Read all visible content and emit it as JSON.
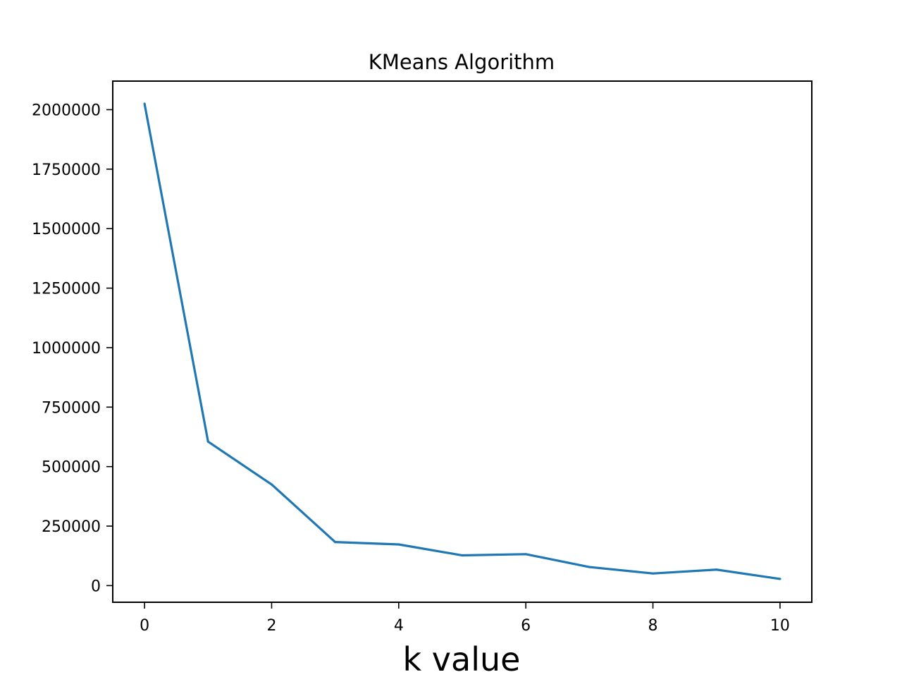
{
  "chart_data": {
    "type": "line",
    "title": "KMeans Algorithm",
    "xlabel": "k value",
    "ylabel": "",
    "x": [
      0,
      1,
      2,
      3,
      4,
      5,
      6,
      7,
      8,
      9,
      10
    ],
    "series": [
      {
        "values": [
          2025000,
          605000,
          425000,
          183000,
          173000,
          127000,
          132000,
          78000,
          51000,
          67000,
          28000
        ],
        "color": "#1f77b4"
      }
    ],
    "xlim": [
      -0.5,
      10.5
    ],
    "ylim": [
      -70000,
      2120000
    ],
    "xticks": [
      0,
      2,
      4,
      6,
      8,
      10
    ],
    "yticks": [
      0,
      250000,
      500000,
      750000,
      1000000,
      1250000,
      1500000,
      1750000,
      2000000
    ],
    "grid": false,
    "legend": "none"
  }
}
